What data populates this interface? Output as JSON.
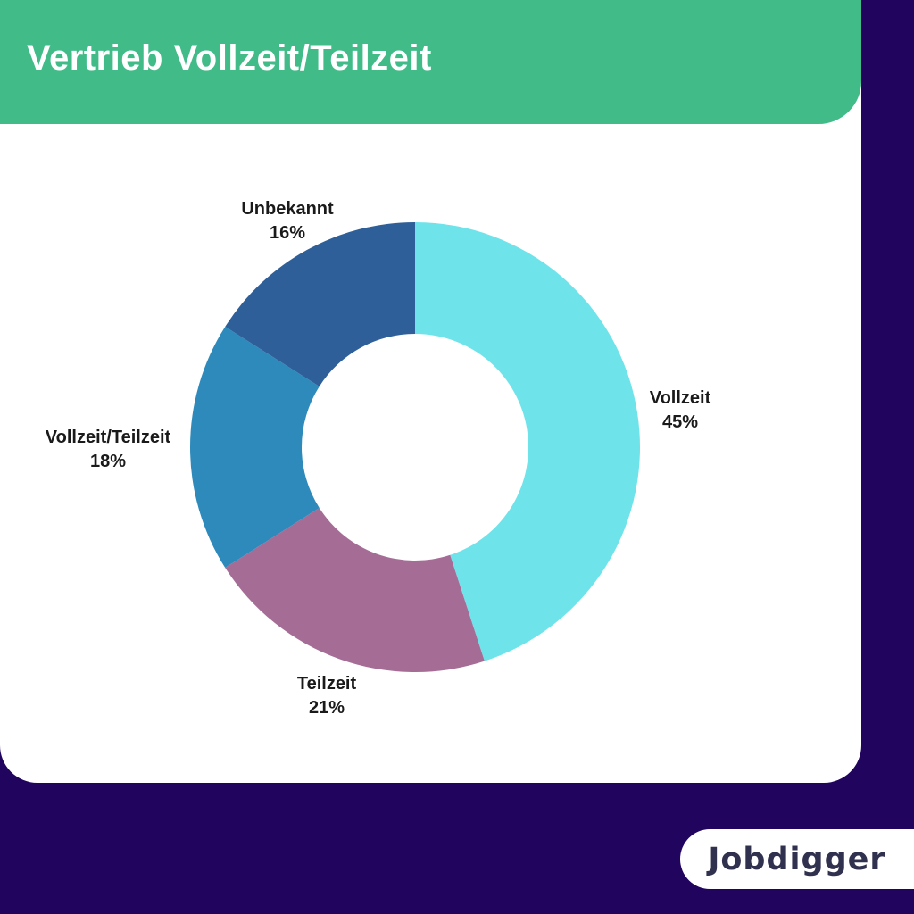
{
  "page": {
    "background_color": "#20045E",
    "card_color": "#FFFFFF"
  },
  "header": {
    "title": "Vertrieb Vollzeit/Teilzeit",
    "bg_color": "#41BC88",
    "text_color": "#FFFFFF"
  },
  "chart_data": {
    "type": "pie",
    "variant": "donut",
    "title": "Vertrieb Vollzeit/Teilzeit",
    "start_angle_deg": 0,
    "direction": "clockwise",
    "inner_radius_ratio": 0.504,
    "label_color": "#1A1A1A",
    "slices": [
      {
        "label": "Vollzeit",
        "value": 45,
        "pct_label": "45%",
        "color": "#6FE3EA"
      },
      {
        "label": "Teilzeit",
        "value": 21,
        "pct_label": "21%",
        "color": "#A56D96"
      },
      {
        "label": "Vollzeit/Teilzeit",
        "value": 18,
        "pct_label": "18%",
        "color": "#2E8ABB"
      },
      {
        "label": "Unbekannt",
        "value": 16,
        "pct_label": "16%",
        "color": "#2E5F99"
      }
    ]
  },
  "branding": {
    "logo_text": "Jobdigger",
    "logo_color": "#30304F",
    "pill_color": "#FFFFFF"
  }
}
